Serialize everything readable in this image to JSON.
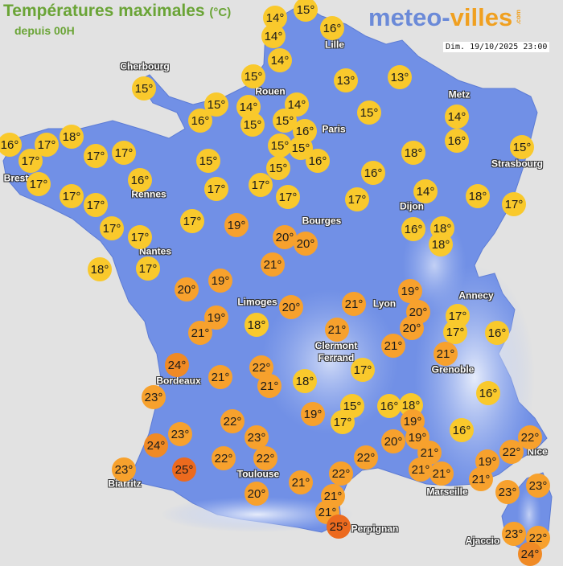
{
  "header": {
    "title": "Températures maximales",
    "unit": "(°C)",
    "subtitle": "depuis 00H",
    "logo_main": "meteo-",
    "logo_accent": "villes",
    "logo_suffix": ".com",
    "datetime": "Dim. 19/10/2025 23:00"
  },
  "colors": {
    "land": "#7190e6",
    "land_light": "#a9bdf0",
    "sea": "#e2e2e2",
    "temp_cool": "#f9c92c",
    "temp_warm": "#f7a12d",
    "temp_hot": "#f08a25",
    "temp_very_hot": "#ec6a1e",
    "title_green": "#6aa436"
  },
  "cities": [
    "Cherbourg",
    "Lille",
    "Rouen",
    "Metz",
    "Paris",
    "Brest",
    "Rennes",
    "Strasbourg",
    "Dijon",
    "Bourges",
    "Nantes",
    "Limoges",
    "Lyon",
    "Annecy",
    "Clermont\nFerrand",
    "Grenoble",
    "Bordeaux",
    "Toulouse",
    "Nice",
    "Biarritz",
    "Marseille",
    "Perpignan",
    "Ajaccio"
  ],
  "temperatures": [
    "14°",
    "15°",
    "14°",
    "16°",
    "14°",
    "15°",
    "13°",
    "13°",
    "15°",
    "15°",
    "14°",
    "14°",
    "16°",
    "15°",
    "15°",
    "16°",
    "15°",
    "14°",
    "16°",
    "18°",
    "17°",
    "17°",
    "17°",
    "17°",
    "15°",
    "15°",
    "16°",
    "18°",
    "16°",
    "15°",
    "15°",
    "15°",
    "16°",
    "17°",
    "17°",
    "17°",
    "17°",
    "17°",
    "16°",
    "17°",
    "17°",
    "14°",
    "18°",
    "17°",
    "17°",
    "17°",
    "17°",
    "19°",
    "20°",
    "20°",
    "16°",
    "18°",
    "18°",
    "18°",
    "17°",
    "20°",
    "19°",
    "21°",
    "19°",
    "20°",
    "21°",
    "20°",
    "20°",
    "17°",
    "17°",
    "16°",
    "19°",
    "18°",
    "21°",
    "21°",
    "21°",
    "21°",
    "24°",
    "21°",
    "22°",
    "21°",
    "18°",
    "17°",
    "23°",
    "19°",
    "15°",
    "17°",
    "16°",
    "18°",
    "19°",
    "16°",
    "22°",
    "23°",
    "23°",
    "19°",
    "20°",
    "16°",
    "24°",
    "22°",
    "22°",
    "22°",
    "21°",
    "21°",
    "22°",
    "22°",
    "23°",
    "25°",
    "19°",
    "22°",
    "21°",
    "21°",
    "21°",
    "23°",
    "23°",
    "20°",
    "21°",
    "21°",
    "25°",
    "23°",
    "22°",
    "24°"
  ]
}
